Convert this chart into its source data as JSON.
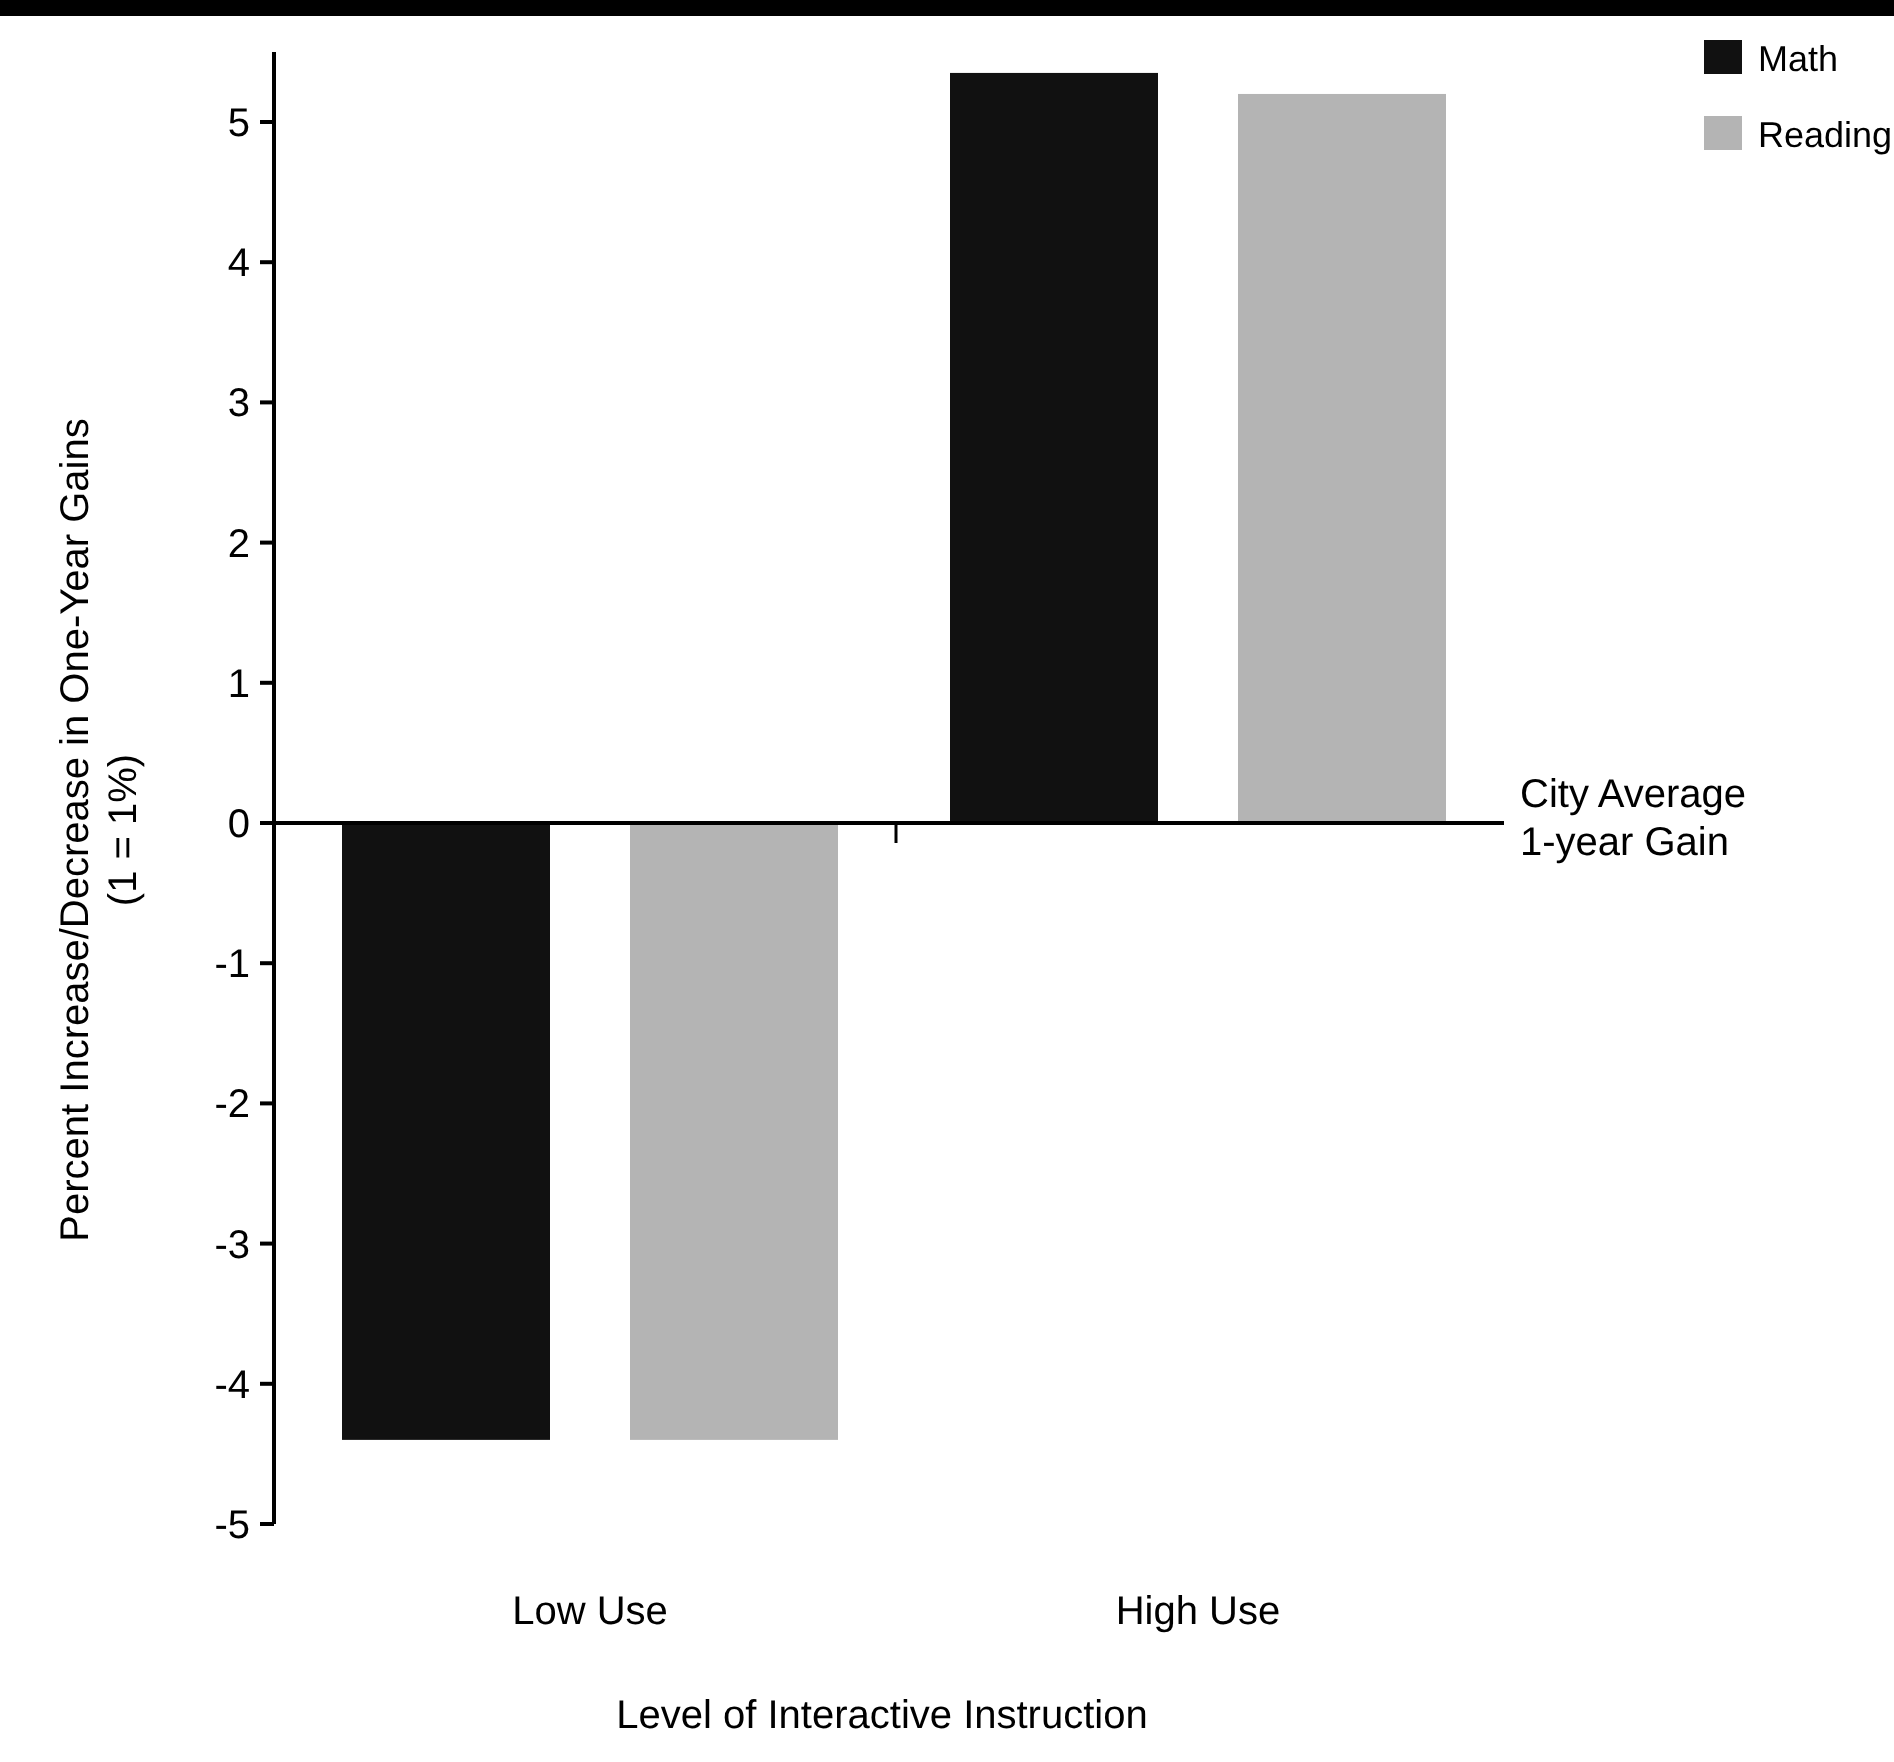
{
  "chart_data": {
    "type": "bar",
    "xlabel": "Level of Interactive Instruction",
    "ylabel": "Percent Increase/Decrease in One-Year Gains\n(1 = 1%)",
    "categories": [
      "Low Use",
      "High Use"
    ],
    "series": [
      {
        "name": "Math",
        "color": "#111111",
        "values": [
          -4.4,
          5.35
        ]
      },
      {
        "name": "Reading",
        "color": "#b4b4b4",
        "values": [
          -4.4,
          5.2
        ]
      }
    ],
    "ylim": [
      -5,
      5.5
    ],
    "yticks": [
      -5,
      -4,
      -3,
      -2,
      -1,
      0,
      1,
      2,
      3,
      4,
      5
    ],
    "ref_lines": [
      {
        "axis": "y",
        "value": 0,
        "label": "City Average\n1-year Gain"
      }
    ],
    "legend": "top right"
  }
}
